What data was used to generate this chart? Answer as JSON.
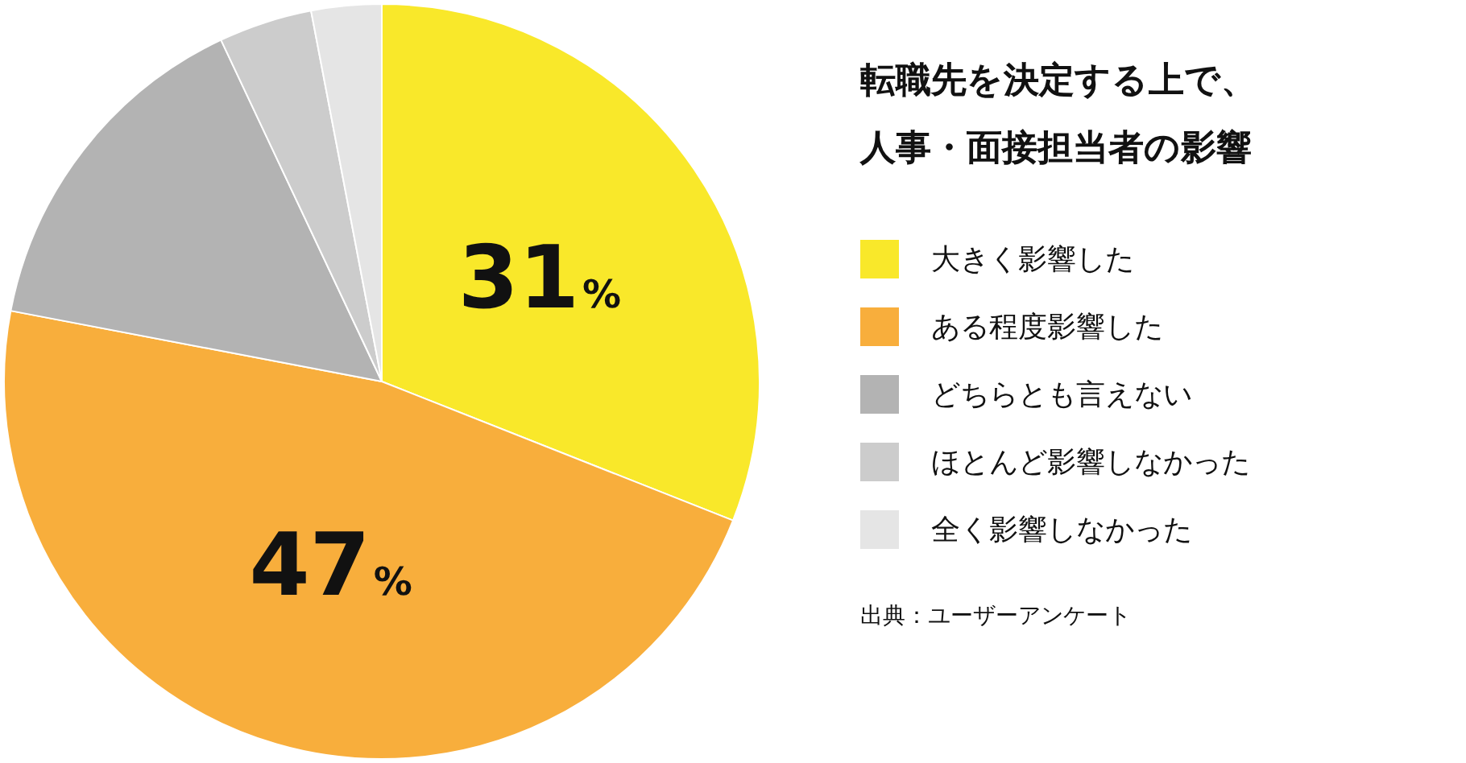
{
  "chart_data": {
    "type": "pie",
    "title": "転職先を決定する上で、人事・面接担当者の影響",
    "categories": [
      "大きく影響した",
      "ある程度影響した",
      "どちらとも言えない",
      "ほとんど影響しなかった",
      "全く影響しなかった"
    ],
    "values": [
      31,
      47,
      15,
      4,
      3
    ],
    "colors": [
      "#f9e82a",
      "#f8ae3c",
      "#b3b3b3",
      "#cccccc",
      "#e5e5e5"
    ],
    "value_labels": [
      "31%",
      "47%",
      null,
      null,
      null
    ],
    "legend": "right",
    "annotations": [
      "出典：ユーザーアンケート"
    ]
  }
}
